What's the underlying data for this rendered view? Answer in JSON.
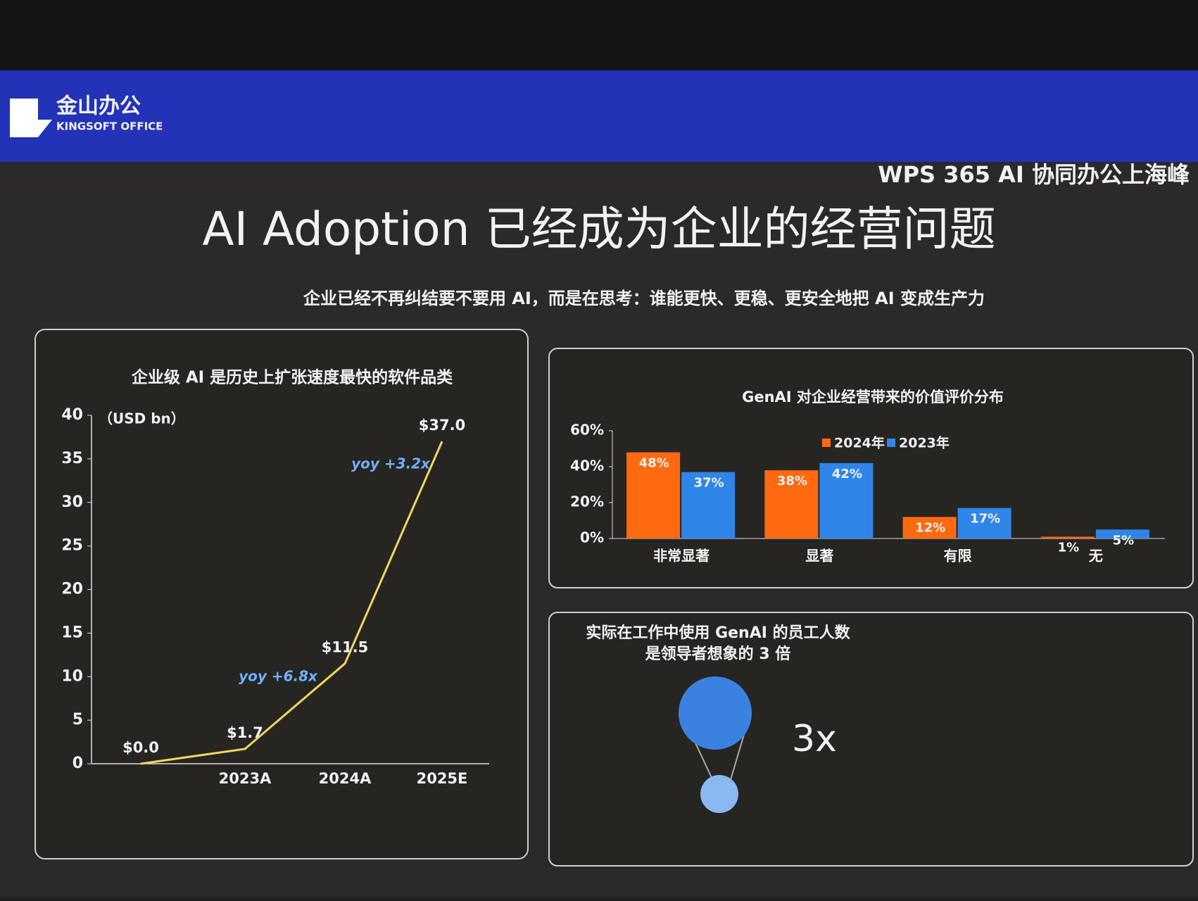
{
  "header": {
    "logo": "金山办公",
    "logo_sub": "KINGSOFT OFFICE",
    "event": "WPS 365 AI 协同办公上海峰",
    "title": "AI Adoption 已经成为企业的经营问题",
    "subtitle": "企业已经不再纠结要不要用 AI，而是在思考：谁能更快、更稳、更安全地把 AI 变成生产力"
  },
  "chart_data": [
    {
      "type": "line",
      "title": "企业级 AI 是历史上扩张速度最快的软件品类",
      "y_label": "（USD bn）",
      "categories": [
        null,
        "2023A",
        "2024A",
        "2025E"
      ],
      "values": [
        0.0,
        1.7,
        11.5,
        37.0
      ],
      "value_labels": [
        "$0.0",
        "$1.7",
        "$11.5",
        "$37.0"
      ],
      "color": "#f3d55b",
      "ylim": [
        0,
        40
      ],
      "yticks": [
        0,
        5,
        10,
        15,
        20,
        25,
        30,
        35,
        40
      ],
      "annotations": [
        "yoy +6.8x",
        "yoy +3.2x"
      ]
    },
    {
      "type": "bar",
      "title": "GenAI 对企业经营带来的价值评价分布",
      "categories": [
        "非常显著",
        "显著",
        "有限",
        "无"
      ],
      "series": [
        {
          "name": "2024年",
          "color": "#ff6a10",
          "values": [
            48,
            38,
            12,
            1
          ],
          "value_labels": [
            "48%",
            "38%",
            "12%",
            "1%"
          ]
        },
        {
          "name": "2023年",
          "color": "#2f86e8",
          "values": [
            37,
            42,
            17,
            5
          ],
          "value_labels": [
            "37%",
            "42%",
            "17%",
            "5%"
          ]
        }
      ],
      "ylim": [
        0,
        60
      ],
      "yticks": [
        {
          "value": 0,
          "label": "0%"
        },
        {
          "value": 20,
          "label": "20%"
        },
        {
          "value": 40,
          "label": "40%"
        },
        {
          "value": 60,
          "label": "60%"
        }
      ],
      "legend": "top"
    }
  ],
  "panel": {
    "line1": "实际在工作中使用 GenAI 的员工人数",
    "line2": "是领导者想象的 3 倍",
    "figure": "3x"
  }
}
